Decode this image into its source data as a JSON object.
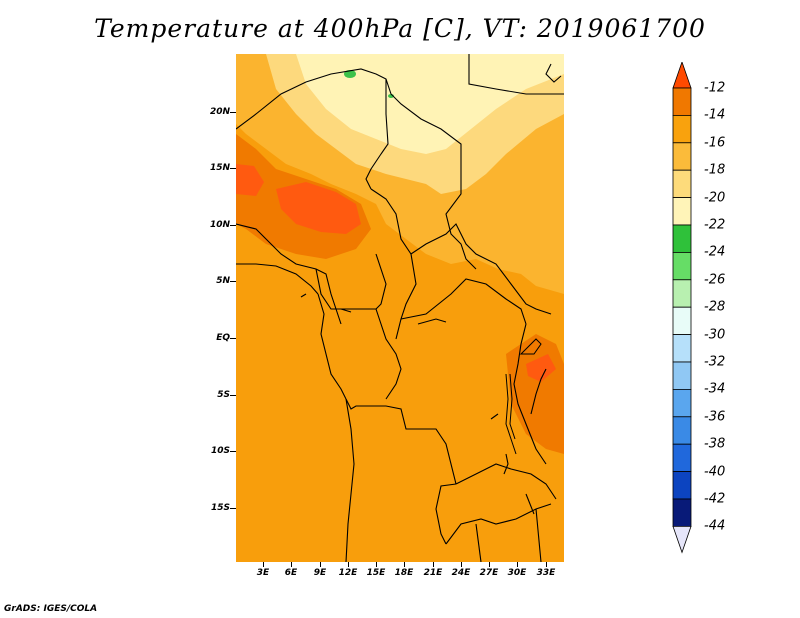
{
  "title": "Temperature at 400hPa [C], VT: 2019061700",
  "credit": "GrADS: IGES/COLA",
  "lat_labels": [
    "20N",
    "15N",
    "10N",
    "5N",
    "EQ",
    "5S",
    "10S",
    "15S"
  ],
  "lon_labels": [
    "3E",
    "6E",
    "9E",
    "12E",
    "15E",
    "18E",
    "21E",
    "24E",
    "27E",
    "30E",
    "33E"
  ],
  "colorbar": {
    "labels": [
      "-12",
      "-14",
      "-16",
      "-18",
      "-20",
      "-22",
      "-24",
      "-26",
      "-28",
      "-30",
      "-32",
      "-34",
      "-36",
      "-38",
      "-40",
      "-42",
      "-44"
    ],
    "colors": [
      "#ff4a00",
      "#f07800",
      "#f9a20d",
      "#fbbb3a",
      "#fddb7b",
      "#fff4b8",
      "#2fc13a",
      "#66dd66",
      "#b8f0b0",
      "#e8fcf8",
      "#b6e0fa",
      "#90c8f4",
      "#5aa6ee",
      "#3a8ae6",
      "#2068dc",
      "#0c44c0",
      "#081a78"
    ],
    "cap_top": "#ff4a00",
    "cap_bottom": "#e6e6fa"
  },
  "map_colors": {
    "ocean": "#f89e0c",
    "warm": "#f07a00",
    "hot": "#ff5a10",
    "mid": "#fbb42f",
    "light": "#fdd97d",
    "pale": "#fff3b5",
    "green": "#3cc14a"
  }
}
